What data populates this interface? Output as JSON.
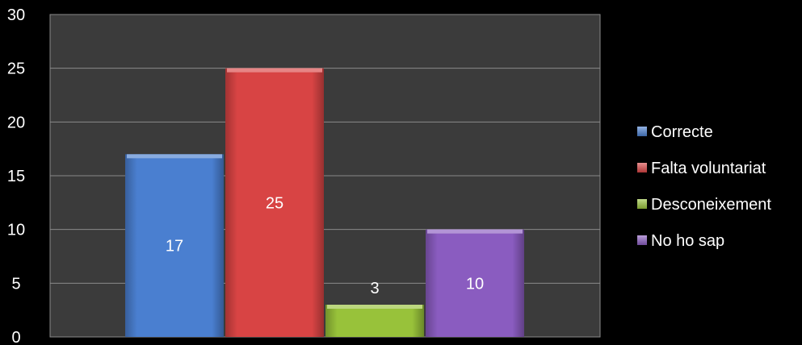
{
  "chart_data": {
    "type": "bar",
    "title": "",
    "xlabel": "",
    "ylabel": "",
    "ylim": [
      0,
      30
    ],
    "yticks": [
      0,
      5,
      10,
      15,
      20,
      25,
      30
    ],
    "grid": true,
    "legend_position": "right",
    "series": [
      {
        "name": "Correcte",
        "value": 17,
        "color": "#4a7fd0"
      },
      {
        "name": "Falta voluntariat",
        "value": 25,
        "color": "#d84444"
      },
      {
        "name": "Desconeixement",
        "value": 3,
        "color": "#98c23a"
      },
      {
        "name": "No ho sap",
        "value": 10,
        "color": "#8a5cc0"
      }
    ],
    "plot_background": "#3b3b3b",
    "gridline_color": "#8a8a8a"
  }
}
